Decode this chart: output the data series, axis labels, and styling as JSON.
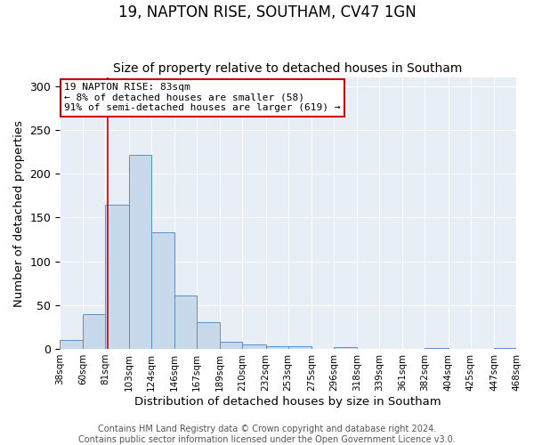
{
  "title": "19, NAPTON RISE, SOUTHAM, CV47 1GN",
  "subtitle": "Size of property relative to detached houses in Southam",
  "xlabel": "Distribution of detached houses by size in Southam",
  "ylabel": "Number of detached properties",
  "bin_edges": [
    38,
    60,
    81,
    103,
    124,
    146,
    167,
    189,
    210,
    232,
    253,
    275,
    296,
    318,
    339,
    361,
    382,
    404,
    425,
    447,
    468
  ],
  "bin_heights": [
    10,
    40,
    165,
    222,
    133,
    61,
    30,
    8,
    5,
    3,
    3,
    0,
    2,
    0,
    0,
    0,
    1,
    0,
    0,
    1
  ],
  "bar_facecolor": "#c9d9ec",
  "bar_edgecolor": "#5b8fc9",
  "vline_x": 83,
  "vline_color": "#cc0000",
  "annotation_title": "19 NAPTON RISE: 83sqm",
  "annotation_line2": "← 8% of detached houses are smaller (58)",
  "annotation_line3": "91% of semi-detached houses are larger (619) →",
  "annotation_box_edgecolor": "#cc0000",
  "annotation_box_facecolor": "#ffffff",
  "ylim": [
    0,
    310
  ],
  "background_color": "#e8eef5",
  "footer_line1": "Contains HM Land Registry data © Crown copyright and database right 2024.",
  "footer_line2": "Contains public sector information licensed under the Open Government Licence v3.0.",
  "title_fontsize": 12,
  "subtitle_fontsize": 10,
  "tick_label_fontsize": 7.5,
  "axis_label_fontsize": 9.5,
  "annotation_fontsize": 8,
  "footer_fontsize": 7
}
